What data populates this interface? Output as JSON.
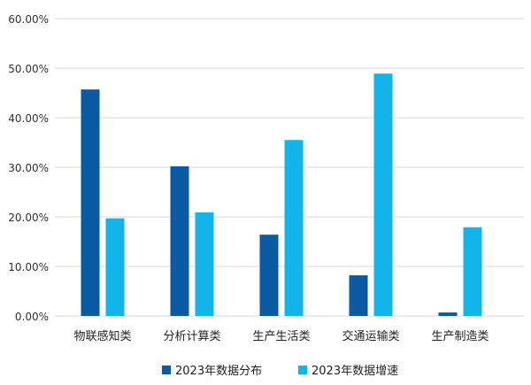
{
  "chart_data": {
    "type": "bar",
    "title": "",
    "xlabel": "",
    "ylabel": "",
    "categories": [
      "物联感知类",
      "分析计算类",
      "生产生活类",
      "交通运输类",
      "生产制造类"
    ],
    "series": [
      {
        "name": "2023年数据分布",
        "color": "#0a5aa4",
        "values": [
          45.7,
          30.2,
          16.4,
          8.2,
          0.7
        ]
      },
      {
        "name": "2023年数据增速",
        "color": "#12b5ea",
        "values": [
          19.7,
          20.9,
          35.5,
          48.9,
          17.9
        ]
      }
    ],
    "ylim": [
      0,
      60
    ],
    "yticks": [
      "0.00%",
      "10.00%",
      "20.00%",
      "30.00%",
      "40.00%",
      "50.00%",
      "60.00%"
    ],
    "grid": true,
    "legend": "bottom"
  }
}
